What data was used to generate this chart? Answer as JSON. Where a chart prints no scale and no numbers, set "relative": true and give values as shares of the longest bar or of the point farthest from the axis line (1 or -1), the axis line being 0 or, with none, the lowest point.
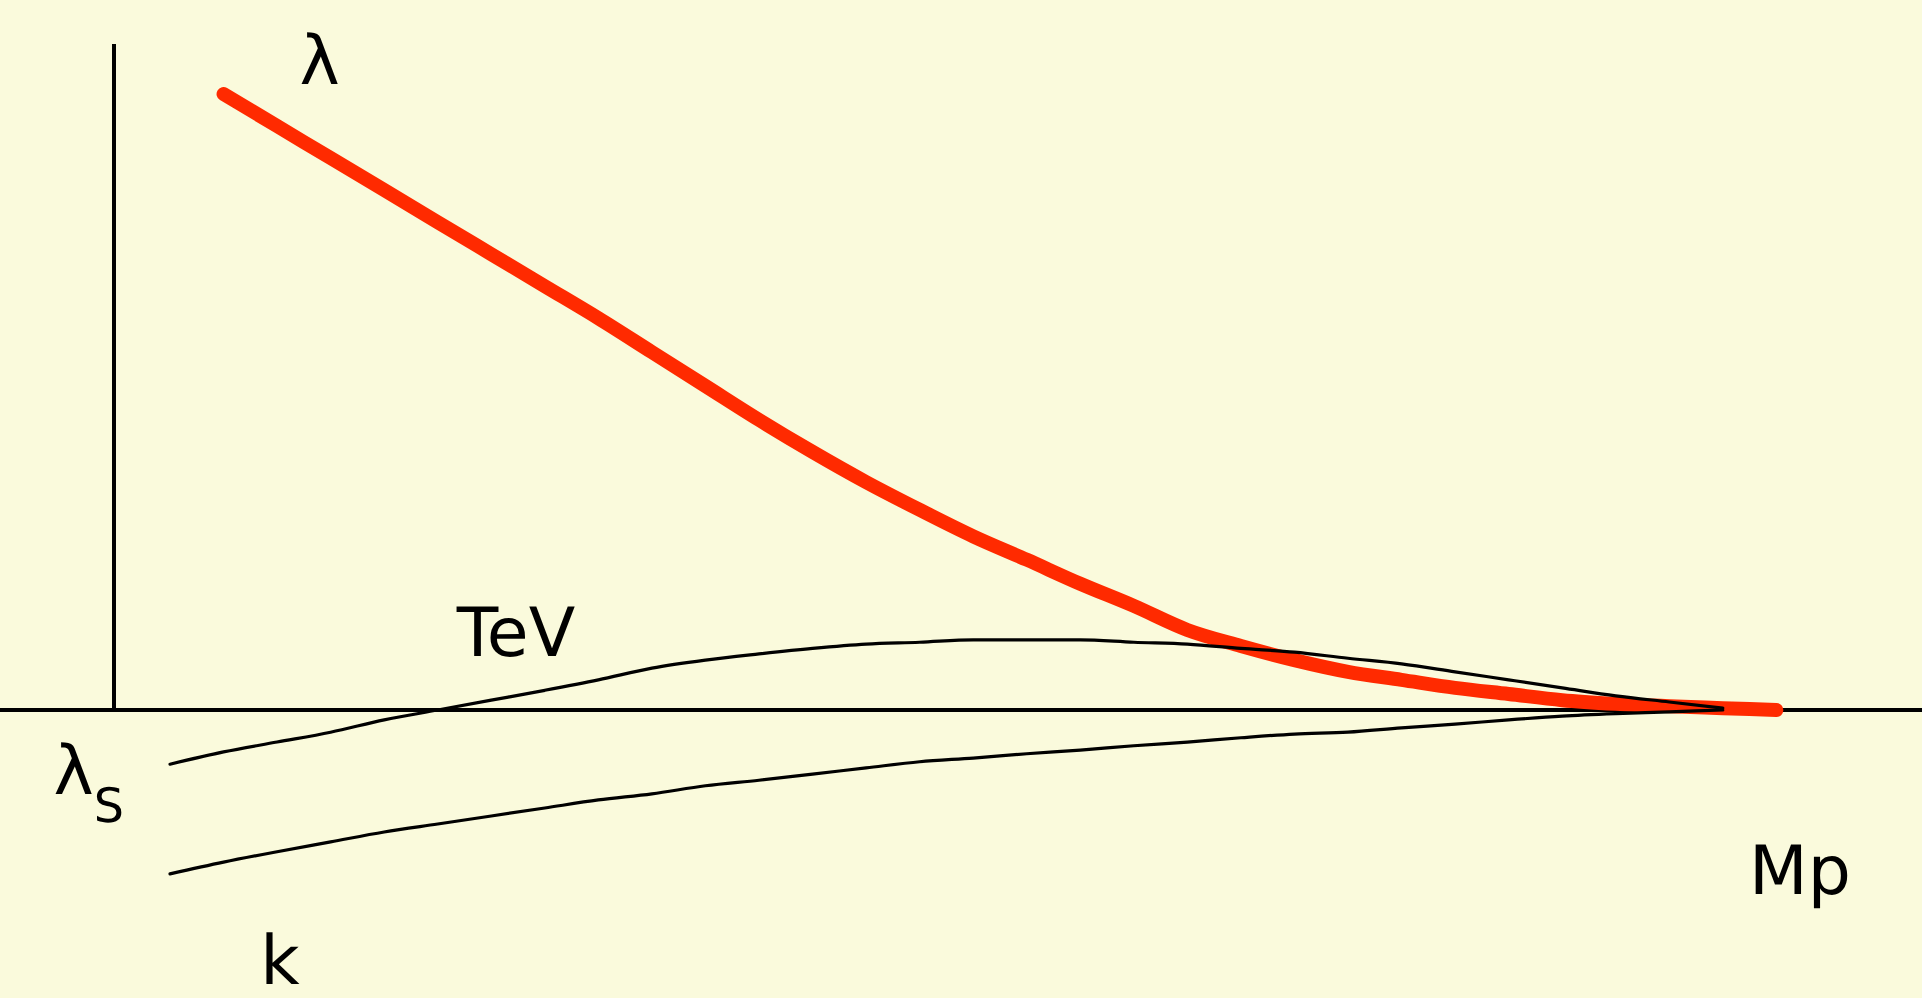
{
  "chart_data": {
    "type": "line",
    "relative": true,
    "marker": "none",
    "line_style": "solid",
    "grid": false,
    "legend": false,
    "categories": [
      null,
      null,
      null,
      null,
      null,
      null,
      null,
      null,
      null,
      null,
      null,
      null,
      null,
      null,
      null,
      null,
      null,
      null,
      null,
      null,
      null,
      null,
      null,
      null,
      null,
      null,
      null,
      null,
      null,
      null,
      null
    ],
    "annotations": [
      {
        "text": "TeV"
      },
      {
        "text": "Mp"
      }
    ],
    "series": [
      {
        "name": "λ",
        "color": "#ff2a00",
        "values": [
          null,
          1,
          0.948,
          0.896,
          0.844,
          0.792,
          0.74,
          0.688,
          0.636,
          0.581,
          0.526,
          0.471,
          0.419,
          0.37,
          0.325,
          0.282,
          0.244,
          0.205,
          0.169,
          0.13,
          0.104,
          0.081,
          0.062,
          0.049,
          0.036,
          0.026,
          0.016,
          0.01,
          0.006,
          0.003,
          0
        ]
      },
      {
        "name": "λ$_{S}$",
        "color": "#000000",
        "values": [
          -0.088,
          -0.068,
          -0.052,
          -0.036,
          -0.016,
          0,
          0.016,
          0.032,
          0.049,
          0.068,
          0.081,
          0.091,
          0.1,
          0.107,
          0.11,
          0.114,
          0.114,
          0.114,
          0.11,
          0.107,
          0.1,
          0.094,
          0.084,
          0.075,
          0.062,
          0.049,
          0.036,
          0.023,
          0.013,
          0.003,
          null
        ]
      },
      {
        "name": "k",
        "color": "#000000",
        "values": [
          -0.266,
          -0.247,
          -0.23,
          -0.214,
          -0.198,
          -0.185,
          -0.172,
          -0.159,
          -0.146,
          -0.136,
          -0.123,
          -0.114,
          -0.104,
          -0.094,
          -0.084,
          -0.078,
          -0.071,
          -0.065,
          -0.058,
          -0.052,
          -0.045,
          -0.039,
          -0.036,
          -0.029,
          -0.023,
          -0.016,
          -0.01,
          -0.006,
          -0.003,
          0,
          null
        ]
      }
    ]
  }
}
